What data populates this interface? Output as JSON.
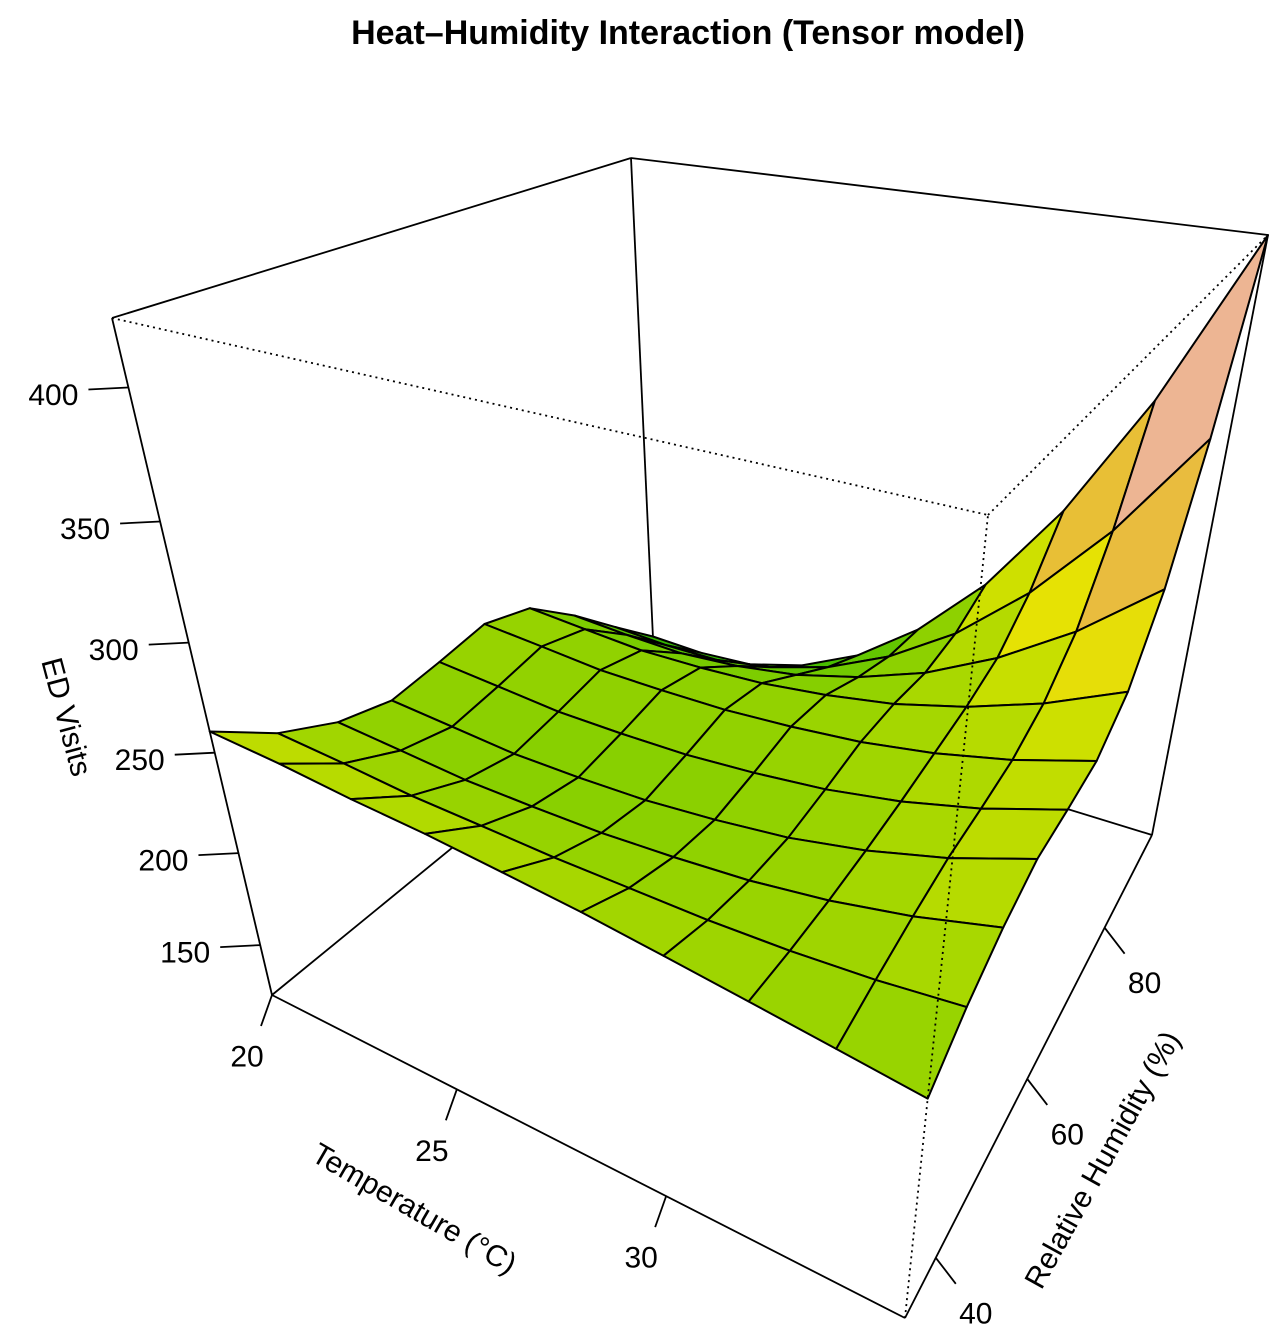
{
  "chart_data": {
    "type": "surface3d",
    "title": "Heat–Humidity Interaction (Tensor model)",
    "xlabel": "Temperature (°C)",
    "ylabel": "Relative Humidity (%)",
    "zlabel": "ED Visits",
    "xlim": [
      20,
      35
    ],
    "ylim": [
      34,
      94
    ],
    "zlim": [
      121,
      424
    ],
    "xticks": [
      20,
      25,
      30
    ],
    "yticks": [
      40,
      60,
      80
    ],
    "zticks": [
      150,
      200,
      250,
      300,
      350,
      400
    ],
    "x": [
      20,
      21.67,
      23.33,
      25,
      26.67,
      28.33,
      30,
      31.67,
      33.33,
      35
    ],
    "y": [
      34,
      40.67,
      47.33,
      54,
      60.67,
      67.33,
      74,
      80.67,
      87.33,
      94
    ],
    "z": [
      [
        260,
        257,
        253,
        250,
        246,
        242,
        237,
        232,
        227,
        222
      ],
      [
        242,
        239.1,
        235.7,
        234,
        232.2,
        231.4,
        230.6,
        231.1,
        232.8,
        236
      ],
      [
        230,
        227.2,
        224.3,
        223.5,
        223.3,
        224.7,
        227,
        231.4,
        238,
        247
      ],
      [
        224,
        221.3,
        218.6,
        218.4,
        219.1,
        221.9,
        226,
        232.9,
        242.4,
        255
      ],
      [
        228,
        225.3,
        222.5,
        222.2,
        222.7,
        225.2,
        229,
        235.3,
        244.2,
        256
      ],
      [
        233,
        230.3,
        227.4,
        227,
        227.3,
        229.5,
        232.9,
        238.7,
        246.9,
        258
      ],
      [
        226,
        223.3,
        220.9,
        221.3,
        223,
        227.1,
        233.1,
        242.4,
        254.8,
        271
      ],
      [
        205,
        202.5,
        201.1,
        203.6,
        208.7,
        217.8,
        230.6,
        248.7,
        271.8,
        301
      ],
      [
        180,
        177.8,
        177.9,
        183.5,
        193.9,
        210.5,
        233.6,
        264.9,
        304.2,
        353
      ],
      [
        155,
        153.2,
        155.1,
        164.6,
        181.5,
        207.6,
        243.4,
        291.2,
        350.7,
        424
      ]
    ],
    "palette": "terrain",
    "colors": {
      "low": "#8ACC00",
      "mid": "#E6E600",
      "high": "#EAB190",
      "grid_line": "#000000"
    },
    "box": true,
    "grid": false,
    "legend": "none"
  }
}
